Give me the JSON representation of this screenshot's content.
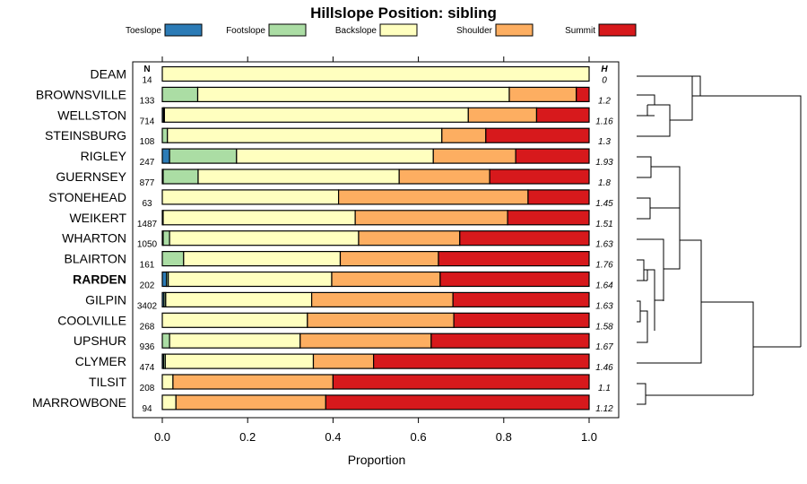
{
  "chart_data": {
    "type": "bar",
    "orientation": "horizontal-stacked",
    "title": "Hillslope Position: sibling",
    "xlabel": "Proportion",
    "ylabel": "",
    "xlim": [
      0,
      1
    ],
    "xticks": [
      "0.0",
      "0.2",
      "0.4",
      "0.6",
      "0.8",
      "1.0"
    ],
    "n_header": "N",
    "h_header": "H",
    "legend_placement": "top",
    "highlight": "RARDEN",
    "series": [
      {
        "name": "Toeslope",
        "color": "#2c7bb6"
      },
      {
        "name": "Footslope",
        "color": "#abdda4"
      },
      {
        "name": "Backslope",
        "color": "#ffffbf"
      },
      {
        "name": "Shoulder",
        "color": "#fdae61"
      },
      {
        "name": "Summit",
        "color": "#d7191c"
      }
    ],
    "categories": [
      {
        "label": "DEAM",
        "n": "14",
        "h": "0",
        "values": [
          0,
          0,
          1.0,
          0,
          0
        ]
      },
      {
        "label": "BROWNSVILLE",
        "n": "133",
        "h": "1.2",
        "values": [
          0,
          0.083,
          0.73,
          0.157,
          0.03
        ]
      },
      {
        "label": "WELLSTON",
        "n": "714",
        "h": "1.16",
        "values": [
          0.003,
          0.002,
          0.712,
          0.16,
          0.123
        ]
      },
      {
        "label": "STEINSBURG",
        "n": "108",
        "h": "1.3",
        "values": [
          0,
          0.012,
          0.643,
          0.103,
          0.242
        ]
      },
      {
        "label": "RIGLEY",
        "n": "247",
        "h": "1.93",
        "values": [
          0.017,
          0.157,
          0.461,
          0.193,
          0.172
        ]
      },
      {
        "label": "GUERNSEY",
        "n": "877",
        "h": "1.8",
        "values": [
          0.002,
          0.082,
          0.471,
          0.212,
          0.233
        ]
      },
      {
        "label": "STONEHEAD",
        "n": "63",
        "h": "1.45",
        "values": [
          0,
          0,
          0.413,
          0.444,
          0.143
        ]
      },
      {
        "label": "WEIKERT",
        "n": "1487",
        "h": "1.51",
        "values": [
          0,
          0.002,
          0.45,
          0.357,
          0.191
        ]
      },
      {
        "label": "WHARTON",
        "n": "1050",
        "h": "1.63",
        "values": [
          0.002,
          0.015,
          0.443,
          0.237,
          0.303
        ]
      },
      {
        "label": "BLAIRTON",
        "n": "161",
        "h": "1.76",
        "values": [
          0,
          0.05,
          0.367,
          0.23,
          0.353
        ]
      },
      {
        "label": "RARDEN",
        "n": "202",
        "h": "1.64",
        "values": [
          0.01,
          0.004,
          0.383,
          0.254,
          0.349
        ]
      },
      {
        "label": "GILPIN",
        "n": "3402",
        "h": "1.63",
        "values": [
          0.004,
          0.004,
          0.342,
          0.331,
          0.319
        ]
      },
      {
        "label": "COOLVILLE",
        "n": "268",
        "h": "1.58",
        "values": [
          0,
          0,
          0.34,
          0.343,
          0.317
        ]
      },
      {
        "label": "UPSHUR",
        "n": "936",
        "h": "1.67",
        "values": [
          0,
          0.017,
          0.306,
          0.307,
          0.37
        ]
      },
      {
        "label": "CLYMER",
        "n": "474",
        "h": "1.46",
        "values": [
          0.003,
          0.004,
          0.347,
          0.141,
          0.505
        ]
      },
      {
        "label": "TILSIT",
        "n": "208",
        "h": "1.1",
        "values": [
          0,
          0,
          0.025,
          0.375,
          0.6
        ]
      },
      {
        "label": "MARROWBONE",
        "n": "94",
        "h": "1.12",
        "values": [
          0,
          0,
          0.032,
          0.351,
          0.617
        ]
      }
    ]
  }
}
